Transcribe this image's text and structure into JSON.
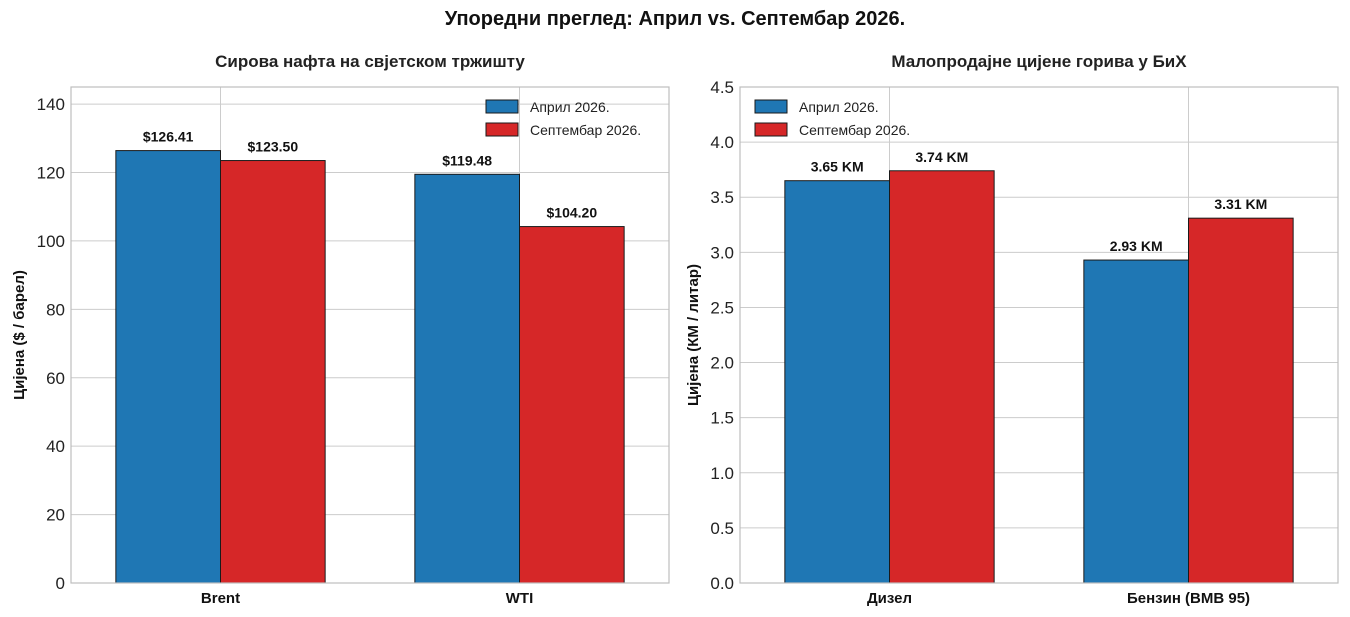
{
  "figure_title": "Упоредни преглед: Април vs. Септембар 2026.",
  "colors": {
    "april": "#1f77b4",
    "september": "#d62728"
  },
  "chart_data": [
    {
      "type": "bar",
      "title": "Сирова нафта на свјетском тржишту",
      "ylabel": "Цијена ($ / барел)",
      "categories": [
        "Brent",
        "WTI"
      ],
      "series": [
        {
          "name": "Април 2026.",
          "values": [
            126.41,
            119.48
          ],
          "labels": [
            "$126.41",
            "$119.48"
          ]
        },
        {
          "name": "Септембар 2026.",
          "values": [
            123.5,
            104.2
          ],
          "labels": [
            "$123.50",
            "$104.20"
          ]
        }
      ],
      "ylim": [
        0,
        145
      ],
      "yticks": [
        0,
        20,
        40,
        60,
        80,
        100,
        120,
        140
      ],
      "ytick_labels": [
        "0",
        "20",
        "40",
        "60",
        "80",
        "100",
        "120",
        "140"
      ],
      "grid": true,
      "legend": "top-right"
    },
    {
      "type": "bar",
      "title": "Малопродајне цијене горива у БиХ",
      "ylabel": "Цијена (КМ / литар)",
      "categories": [
        "Дизел",
        "Бензин (BMB 95)"
      ],
      "series": [
        {
          "name": "Април 2026.",
          "values": [
            3.65,
            2.93
          ],
          "labels": [
            "3.65 KM",
            "2.93 KM"
          ]
        },
        {
          "name": "Септембар 2026.",
          "values": [
            3.74,
            3.31
          ],
          "labels": [
            "3.74 KM",
            "3.31 KM"
          ]
        }
      ],
      "ylim": [
        0,
        4.5
      ],
      "yticks": [
        0,
        0.5,
        1,
        1.5,
        2,
        2.5,
        3,
        3.5,
        4,
        4.5
      ],
      "ytick_labels": [
        "0.0",
        "0.5",
        "1.0",
        "1.5",
        "2.0",
        "2.5",
        "3.0",
        "3.5",
        "4.0",
        "4.5"
      ],
      "grid": true,
      "legend": "top-left"
    }
  ]
}
